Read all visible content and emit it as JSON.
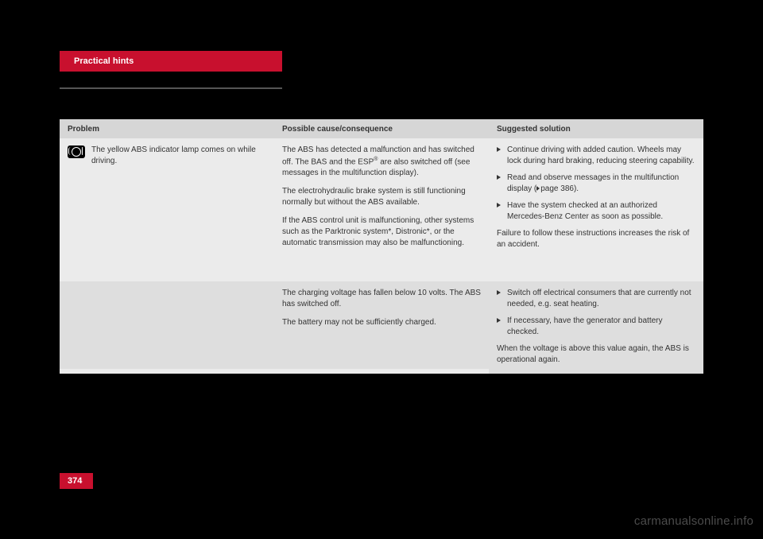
{
  "header": {
    "tab_label": "Practical hints"
  },
  "table": {
    "headers": {
      "problem": "Problem",
      "cause": "Possible cause/consequence",
      "solution": "Suggested solution"
    },
    "row1": {
      "problem_text": "The yellow ABS indicator lamp comes on while driving.",
      "cause_p1a": "The ABS has detected a malfunction and has switched off. The BAS and the ESP",
      "cause_p1_sup": "®",
      "cause_p1b": " are also switched off (see messages in the multifunction display).",
      "cause_p2": "The electrohydraulic brake system is still functioning normally but without the ABS available.",
      "cause_p3": "If the ABS control unit is malfunctioning, other systems such as the Parktronic system*, Distronic*, or the automatic transmission may also be malfunctioning.",
      "sol_b1": "Continue driving with added caution. Wheels may lock during hard braking, reducing steering capability.",
      "sol_b2a": "Read and observe messages in the multifunction display (",
      "sol_b2_page": "page 386",
      "sol_b2b": ").",
      "sol_b3": "Have the system checked at an authorized Mercedes-Benz Center as soon as possible.",
      "sol_trailer": "Failure to follow these instructions increases the risk of an accident."
    },
    "row2": {
      "cause_p1": "The charging voltage has fallen below 10 volts. The ABS has switched off.",
      "cause_p2": "The battery may not be sufficiently charged.",
      "sol_b1": "Switch off electrical consumers that are currently not needed, e.g. seat heating.",
      "sol_b2": "If necessary, have the generator and battery checked.",
      "sol_trailer": "When the voltage is above this value again, the ABS is operational again."
    }
  },
  "page_number": "374",
  "watermark": "carmanualsonline.info"
}
